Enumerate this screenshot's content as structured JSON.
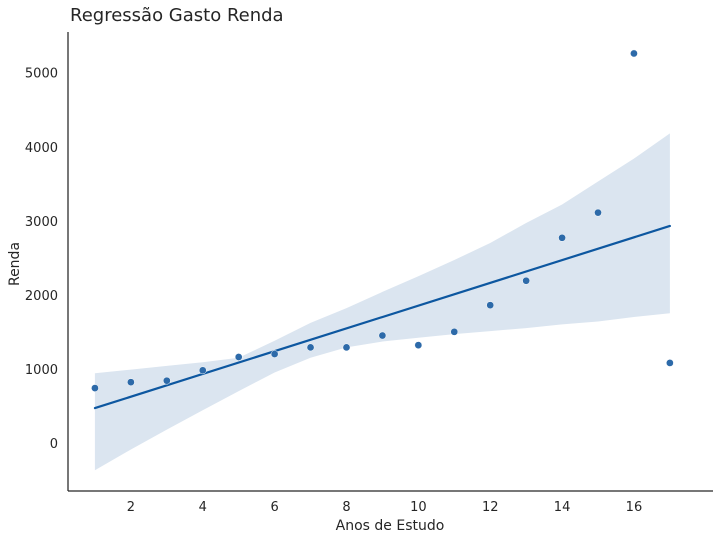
{
  "chart_data": {
    "type": "scatter",
    "title": "Regressão Gasto Renda",
    "xlabel": "Anos de Estudo",
    "ylabel": "Renda",
    "xlim": [
      0.25,
      18.2
    ],
    "ylim": [
      -650,
      5550
    ],
    "xticks": [
      2,
      4,
      6,
      8,
      10,
      12,
      14,
      16
    ],
    "yticks": [
      0,
      1000,
      2000,
      3000,
      4000,
      5000
    ],
    "grid": false,
    "series": [
      {
        "x": [
          1,
          2,
          3,
          4,
          5,
          6,
          7,
          8,
          9,
          10,
          11,
          12,
          13,
          14,
          15,
          16,
          17
        ],
        "values": [
          740,
          820,
          840,
          980,
          1160,
          1200,
          1290,
          1290,
          1450,
          1320,
          1500,
          1860,
          2190,
          2770,
          3110,
          5260,
          1080
        ]
      }
    ],
    "regression_line": {
      "x": [
        1,
        17
      ],
      "y": [
        470,
        2930
      ]
    },
    "confidence_band": {
      "x": [
        1,
        2,
        3,
        4,
        5,
        6,
        7,
        8,
        9,
        10,
        11,
        12,
        13,
        14,
        15,
        16,
        17
      ],
      "lower": [
        -370,
        -90,
        180,
        440,
        700,
        950,
        1150,
        1290,
        1370,
        1420,
        1470,
        1510,
        1550,
        1600,
        1640,
        1700,
        1750
      ],
      "upper": [
        940,
        990,
        1040,
        1090,
        1150,
        1380,
        1620,
        1820,
        2040,
        2250,
        2470,
        2700,
        2970,
        3220,
        3530,
        3840,
        4180
      ]
    },
    "colors": {
      "points": "#2d6aa9",
      "line": "#0d57a0",
      "band": "#dbe5f0",
      "axis": "#262626"
    }
  }
}
